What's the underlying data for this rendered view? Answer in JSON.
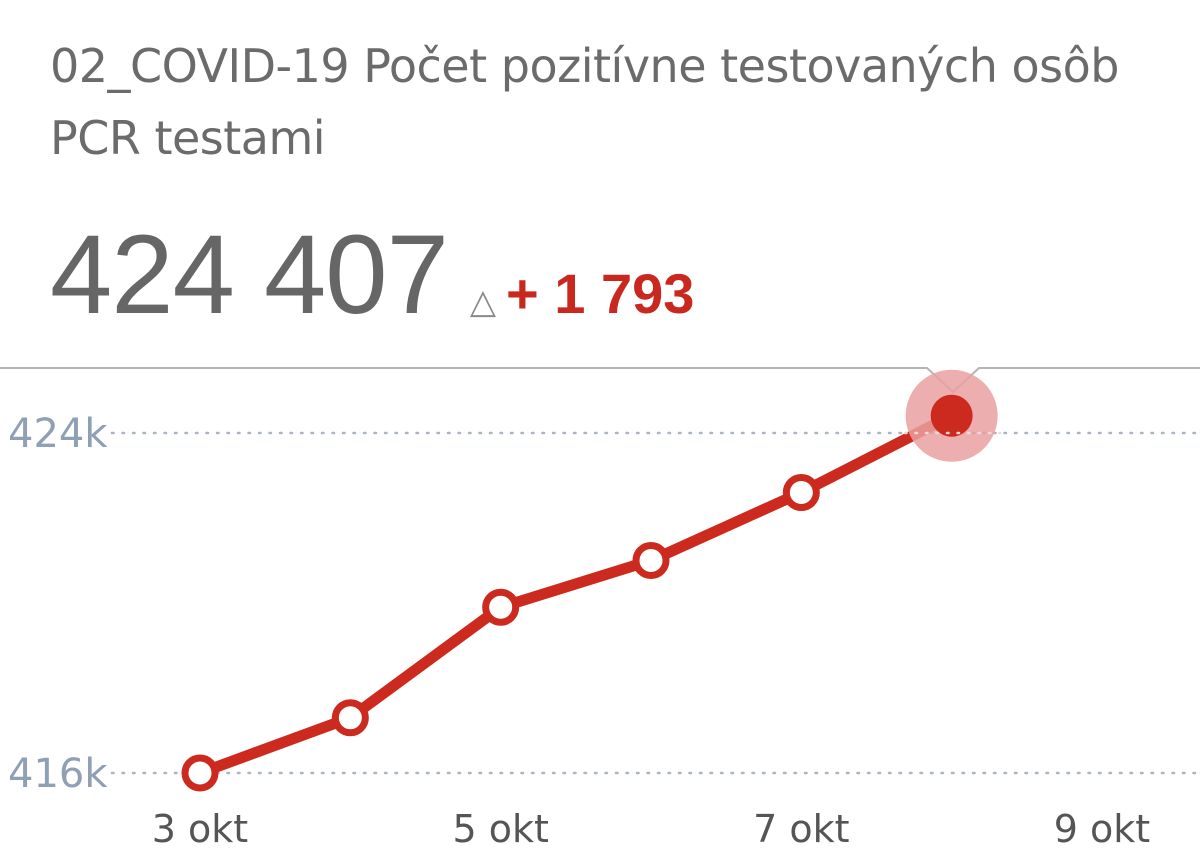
{
  "header": {
    "title": "02_COVID-19 Počet pozitívne testovaných osôb PCR testami"
  },
  "kpi": {
    "value": "424 407",
    "delta_icon": "delta-triangle-icon",
    "delta": "+ 1 793"
  },
  "colors": {
    "line": "#cc2a1f",
    "highlight_halo": "#e9a0a0",
    "title_text": "#6b6b6b",
    "axis_text": "#8fa0b5",
    "x_tick_text": "#555555",
    "delta": "#c8281e",
    "gridline": "#a9b4c4",
    "panel_border": "#b5b5b5"
  },
  "chart_data": {
    "type": "line",
    "title": "",
    "xlabel": "",
    "ylabel": "",
    "x_axis_type": "date",
    "x": [
      "2020-10-03",
      "2020-10-04",
      "2020-10-05",
      "2020-10-06",
      "2020-10-07",
      "2020-10-08"
    ],
    "series": [
      {
        "values": [
          416000,
          417300,
          419900,
          421000,
          422600,
          424407
        ]
      }
    ],
    "highlighted_point_index": 5,
    "ylim": [
      416000,
      424000
    ],
    "xlim": [
      "2020-10-03",
      "2020-10-09"
    ],
    "y_ticks": [
      {
        "value": 416000,
        "label": "416k"
      },
      {
        "value": 424000,
        "label": "424k"
      }
    ],
    "x_ticks": [
      {
        "value": "2020-10-03",
        "label": "3 okt"
      },
      {
        "value": "2020-10-05",
        "label": "5 okt"
      },
      {
        "value": "2020-10-07",
        "label": "7 okt"
      },
      {
        "value": "2020-10-09",
        "label": "9 okt"
      }
    ],
    "grid": true,
    "legend": "none"
  }
}
